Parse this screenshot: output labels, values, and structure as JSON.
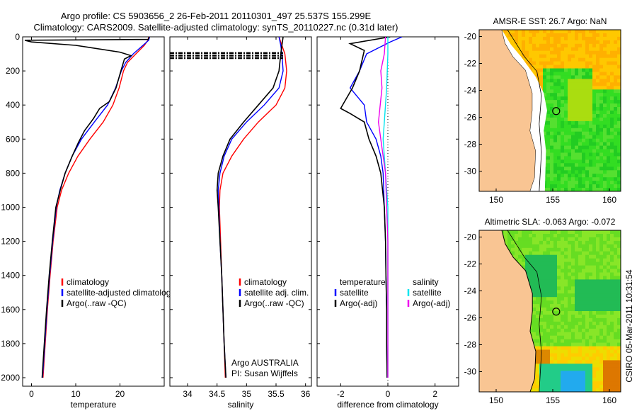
{
  "title_line1": "Argo profile: CS 5903656_2 26-Feb-2011 20110301_497 25.537S 155.299E",
  "title_line2": "Climatology: CARS2009. Satellite-adjusted climatology: synTS_20110227.nc (0.31d later)",
  "watermark": "CSIRO 05-Mar-2011 10:31:54",
  "argo_note": [
    "Argo AUSTRALIA",
    "PI: Susan Wijffels"
  ],
  "colors": {
    "climatology": "#ff0000",
    "satellite": "#0000ff",
    "argo": "#000000",
    "sal_satellite": "#00e5ee",
    "sal_argo": "#ee00ee",
    "land": "#f9c593",
    "sst_warm": "#ffb000",
    "sst_cool": "#22cc22"
  },
  "chart_data": [
    {
      "type": "line",
      "name": "temperature",
      "xlabel": "temperature",
      "ylabel": "",
      "xlim": [
        -2,
        30
      ],
      "ylim": [
        0,
        2050
      ],
      "xticks": [
        0,
        10,
        20
      ],
      "yticks": [
        0,
        200,
        400,
        600,
        800,
        1000,
        1200,
        1400,
        1600,
        1800,
        2000
      ],
      "legend": [
        "climatology",
        "satellite-adjusted climatology",
        "Argo(..raw -QC)"
      ],
      "series": [
        {
          "name": "climatology",
          "color": "#ff0000",
          "points": [
            [
              26.5,
              0
            ],
            [
              26.3,
              20
            ],
            [
              25.5,
              50
            ],
            [
              23.6,
              100
            ],
            [
              21.7,
              150
            ],
            [
              20.8,
              200
            ],
            [
              19.8,
              300
            ],
            [
              18.4,
              400
            ],
            [
              16.2,
              500
            ],
            [
              13.2,
              600
            ],
            [
              10.5,
              700
            ],
            [
              8.4,
              800
            ],
            [
              6.8,
              900
            ],
            [
              5.8,
              1000
            ],
            [
              4.9,
              1200
            ],
            [
              4.2,
              1400
            ],
            [
              3.6,
              1600
            ],
            [
              3.1,
              1800
            ],
            [
              2.6,
              2000
            ]
          ]
        },
        {
          "name": "satellite",
          "color": "#0000ff",
          "points": [
            [
              26.7,
              0
            ],
            [
              26.5,
              20
            ],
            [
              25.2,
              50
            ],
            [
              23.0,
              100
            ],
            [
              21.3,
              150
            ],
            [
              20.3,
              200
            ],
            [
              19.0,
              300
            ],
            [
              17.2,
              400
            ],
            [
              14.2,
              500
            ],
            [
              11.3,
              600
            ],
            [
              9.2,
              700
            ],
            [
              7.6,
              800
            ],
            [
              6.4,
              900
            ],
            [
              5.6,
              1000
            ],
            [
              4.8,
              1200
            ],
            [
              4.1,
              1400
            ],
            [
              3.5,
              1600
            ],
            [
              3.0,
              1800
            ],
            [
              2.5,
              2000
            ]
          ]
        },
        {
          "name": "argo",
          "color": "#000000",
          "points": [
            [
              26.6,
              0
            ],
            [
              26.4,
              15
            ],
            [
              -1.5,
              20
            ],
            [
              0,
              30
            ],
            [
              10,
              50
            ],
            [
              20,
              90
            ],
            [
              22.5,
              110
            ],
            [
              21,
              130
            ],
            [
              20.2,
              200
            ],
            [
              19.1,
              300
            ],
            [
              17.6,
              380
            ],
            [
              15.4,
              420
            ],
            [
              14.0,
              480
            ],
            [
              12.0,
              550
            ],
            [
              10.6,
              620
            ],
            [
              9.2,
              700
            ],
            [
              7.6,
              800
            ],
            [
              6.5,
              900
            ],
            [
              5.5,
              1000
            ],
            [
              4.7,
              1200
            ],
            [
              4.0,
              1400
            ],
            [
              3.4,
              1600
            ],
            [
              2.9,
              1800
            ],
            [
              2.4,
              2000
            ]
          ]
        }
      ]
    },
    {
      "type": "line",
      "name": "salinity",
      "xlabel": "salinity",
      "xlim": [
        33.7,
        36.1
      ],
      "ylim": [
        0,
        2050
      ],
      "xticks": [
        34,
        34.5,
        35,
        35.5,
        36
      ],
      "legend": [
        "climatology",
        "satellite adj. clim.",
        "Argo(..raw -QC)"
      ],
      "series": [
        {
          "name": "climatology",
          "color": "#ff0000",
          "points": [
            [
              35.55,
              0
            ],
            [
              35.6,
              50
            ],
            [
              35.65,
              100
            ],
            [
              35.68,
              200
            ],
            [
              35.65,
              300
            ],
            [
              35.5,
              400
            ],
            [
              35.2,
              500
            ],
            [
              34.95,
              600
            ],
            [
              34.75,
              700
            ],
            [
              34.6,
              800
            ],
            [
              34.55,
              900
            ],
            [
              34.54,
              1000
            ],
            [
              34.56,
              1200
            ],
            [
              34.58,
              1400
            ],
            [
              34.6,
              1600
            ],
            [
              34.62,
              1800
            ],
            [
              34.64,
              2000
            ]
          ]
        },
        {
          "name": "satellite",
          "color": "#0000ff",
          "points": [
            [
              35.55,
              0
            ],
            [
              35.58,
              50
            ],
            [
              35.6,
              100
            ],
            [
              35.62,
              200
            ],
            [
              35.55,
              300
            ],
            [
              35.3,
              400
            ],
            [
              35.0,
              500
            ],
            [
              34.75,
              600
            ],
            [
              34.62,
              700
            ],
            [
              34.55,
              800
            ],
            [
              34.52,
              900
            ],
            [
              34.53,
              1000
            ],
            [
              34.55,
              1200
            ],
            [
              34.58,
              1400
            ],
            [
              34.6,
              1600
            ],
            [
              34.62,
              1800
            ],
            [
              34.65,
              2000
            ]
          ]
        },
        {
          "name": "argo",
          "color": "#000000",
          "points": [
            [
              35.62,
              0
            ],
            [
              35.6,
              50
            ],
            [
              35.58,
              100
            ],
            [
              35.55,
              200
            ],
            [
              35.45,
              300
            ],
            [
              35.2,
              400
            ],
            [
              34.95,
              500
            ],
            [
              34.72,
              600
            ],
            [
              34.6,
              700
            ],
            [
              34.52,
              800
            ],
            [
              34.5,
              900
            ],
            [
              34.52,
              1000
            ],
            [
              34.55,
              1200
            ],
            [
              34.58,
              1400
            ],
            [
              34.6,
              1600
            ],
            [
              34.62,
              1800
            ],
            [
              34.65,
              2000
            ]
          ]
        }
      ],
      "dashed_depths": [
        95,
        110,
        125
      ]
    },
    {
      "type": "line",
      "name": "difference",
      "xlabel": "difference from climatology",
      "xlim": [
        -3,
        3
      ],
      "ylim": [
        0,
        2050
      ],
      "xticks": [
        -2,
        0,
        2
      ],
      "legend_temperature_title": "temperature",
      "legend_salinity_title": "salinity",
      "legend_temperature": [
        "satellite",
        "Argo(-adj)"
      ],
      "legend_salinity": [
        "satellite",
        "Argo(-adj)"
      ],
      "series": [
        {
          "name": "temperature satellite",
          "color": "#0000ff",
          "points": [
            [
              0.6,
              0
            ],
            [
              0.1,
              30
            ],
            [
              -0.9,
              100
            ],
            [
              -1.2,
              200
            ],
            [
              -1.6,
              300
            ],
            [
              -1.0,
              400
            ],
            [
              -0.9,
              500
            ],
            [
              -0.5,
              600
            ],
            [
              -0.3,
              700
            ],
            [
              -0.2,
              800
            ],
            [
              -0.15,
              1000
            ],
            [
              -0.1,
              1200
            ],
            [
              -0.08,
              1400
            ],
            [
              -0.05,
              1600
            ],
            [
              -0.05,
              1800
            ],
            [
              -0.03,
              2000
            ]
          ]
        },
        {
          "name": "temperature argo",
          "color": "#000000",
          "points": [
            [
              0.1,
              0
            ],
            [
              -1.6,
              40
            ],
            [
              -1.0,
              80
            ],
            [
              -1.2,
              200
            ],
            [
              -1.5,
              300
            ],
            [
              -2.0,
              420
            ],
            [
              -1.6,
              450
            ],
            [
              -1.0,
              500
            ],
            [
              -0.8,
              600
            ],
            [
              -0.5,
              700
            ],
            [
              -0.3,
              800
            ],
            [
              -0.15,
              1000
            ],
            [
              -0.1,
              1200
            ],
            [
              -0.08,
              1400
            ],
            [
              -0.05,
              1600
            ],
            [
              -0.05,
              1800
            ],
            [
              -0.03,
              2000
            ]
          ]
        },
        {
          "name": "salinity satellite",
          "color": "#00e5ee",
          "points": [
            [
              0.0,
              0
            ],
            [
              0.0,
              100
            ],
            [
              -0.05,
              300
            ],
            [
              -0.15,
              500
            ],
            [
              -0.2,
              600
            ],
            [
              -0.1,
              800
            ],
            [
              0,
              1000
            ],
            [
              0,
              1200
            ],
            [
              0,
              1400
            ],
            [
              0,
              1600
            ],
            [
              0,
              1800
            ],
            [
              0,
              2000
            ]
          ]
        },
        {
          "name": "salinity argo",
          "color": "#ee00ee",
          "points": [
            [
              -0.1,
              0
            ],
            [
              -0.15,
              100
            ],
            [
              -0.3,
              200
            ],
            [
              -0.25,
              300
            ],
            [
              -0.4,
              500
            ],
            [
              -0.3,
              600
            ],
            [
              -0.2,
              700
            ],
            [
              -0.1,
              800
            ],
            [
              -0.05,
              1000
            ],
            [
              0,
              1200
            ],
            [
              0,
              1400
            ],
            [
              0,
              1600
            ],
            [
              0,
              1800
            ],
            [
              0,
              2000
            ]
          ]
        }
      ]
    },
    {
      "type": "heatmap",
      "name": "sst-map",
      "title": "AMSR-E SST: 26.7 Argo: NaN",
      "xticks": [
        150,
        155,
        160
      ],
      "yticks": [
        -20,
        -22,
        -24,
        -26,
        -28,
        -30
      ],
      "xlim": [
        148.5,
        161
      ],
      "ylim": [
        -31.5,
        -19.5
      ],
      "float_position": [
        155.3,
        -25.54
      ]
    },
    {
      "type": "heatmap",
      "name": "sla-map",
      "title": "Altimetric SLA: -0.063 Argo: -0.072",
      "xticks": [
        150,
        155,
        160
      ],
      "yticks": [
        -20,
        -22,
        -24,
        -26,
        -28,
        -30
      ],
      "xlim": [
        148.5,
        161
      ],
      "ylim": [
        -31.5,
        -19.5
      ],
      "float_position": [
        155.3,
        -25.54
      ]
    }
  ]
}
